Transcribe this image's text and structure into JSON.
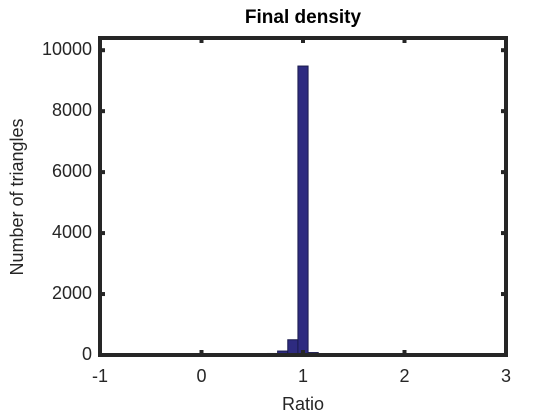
{
  "chart_data": {
    "type": "histogram",
    "title": "Final density",
    "xlabel": "Ratio",
    "ylabel": "Number of triangles",
    "bins": [
      0.65,
      0.75,
      0.85,
      0.95,
      1.05,
      1.15
    ],
    "values": [
      50,
      130,
      500,
      9480,
      80
    ],
    "color": "#2e2b80",
    "edgecolor": "#1a1a4d",
    "xlim": [
      -1,
      3
    ],
    "xticks": [
      -1,
      0,
      1,
      2,
      3
    ],
    "ylim": [
      0,
      10400
    ],
    "yticks": [
      0,
      2000,
      4000,
      6000,
      8000,
      10000
    ],
    "grid": false
  }
}
